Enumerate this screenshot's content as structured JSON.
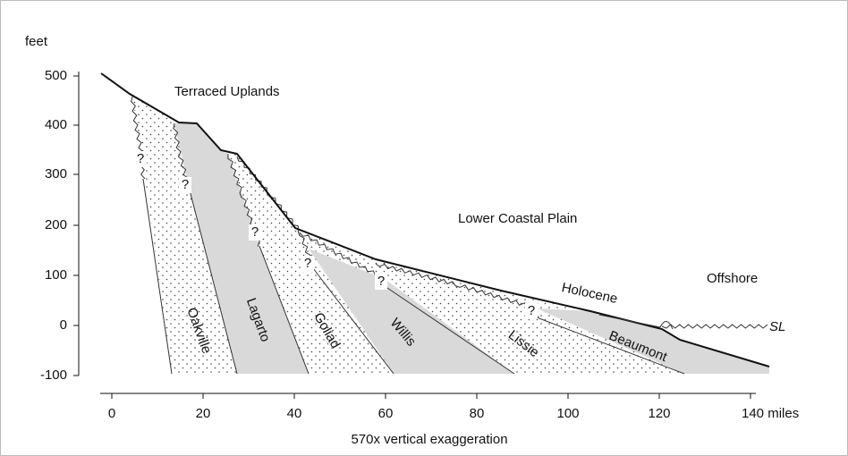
{
  "y_axis": {
    "label": "feet",
    "ticks": [
      "500",
      "400",
      "300",
      "200",
      "100",
      "0",
      "-100"
    ]
  },
  "x_axis": {
    "ticks": [
      "0",
      "20",
      "40",
      "60",
      "80",
      "100",
      "120",
      "140 miles"
    ],
    "caption": "570x vertical exaggeration"
  },
  "regions": {
    "uplands": "Terraced Uplands",
    "plain": "Lower Coastal Plain",
    "offshore": "Offshore",
    "holocene": "Holocene"
  },
  "formations": [
    "Oakville",
    "Lagarto",
    "Goliad",
    "Willis",
    "Lissie",
    "Beaumont"
  ],
  "sea_level": "SL",
  "unknown_marks": [
    "?",
    "?",
    "?",
    "?",
    "?",
    "?"
  ]
}
